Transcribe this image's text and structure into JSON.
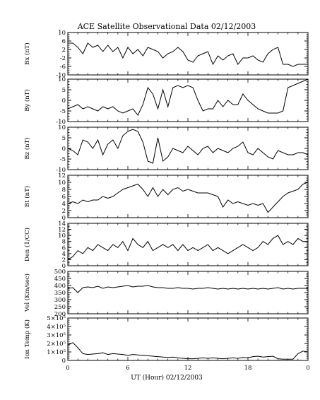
{
  "chart_data": {
    "type": "line",
    "title": "ACE Satellite Observational Data   02/12/2003",
    "xlabel": "UT (Hour)   02/12/2003",
    "x_ticks": [
      "0",
      "6",
      "12",
      "18",
      "0"
    ],
    "xlim": [
      0,
      24
    ],
    "grid": false,
    "panels": [
      {
        "ylabel": "Bx (nT)",
        "ylim": [
          -10,
          10
        ],
        "y_ticks": [
          "10",
          "6",
          "2",
          "-2",
          "-6",
          "-10"
        ],
        "x": [
          0,
          0.5,
          1,
          1.5,
          2,
          2.5,
          3,
          3.5,
          4,
          4.5,
          5,
          5.5,
          6,
          6.5,
          7,
          7.5,
          8,
          8.5,
          9,
          9.5,
          10,
          10.5,
          11,
          11.5,
          12,
          12.5,
          13,
          13.5,
          14,
          14.5,
          15,
          15.5,
          16,
          16.5,
          17,
          17.5,
          18,
          18.5,
          19,
          19.5,
          20,
          20.5,
          21,
          21.5,
          22,
          22.5,
          23,
          23.5,
          24
        ],
        "values": [
          5,
          5,
          3,
          0,
          5,
          3,
          4,
          1,
          4,
          1,
          3,
          -2,
          3,
          0,
          2,
          -1,
          3,
          2,
          1,
          -2,
          0,
          1,
          3,
          1,
          -3,
          -4,
          -1,
          0,
          1,
          -5,
          -1,
          -3,
          -1,
          0,
          -5,
          -2,
          -2,
          -1,
          -3,
          -4,
          0,
          2,
          3,
          -5,
          -5,
          -6,
          -5,
          -5,
          -5
        ]
      },
      {
        "ylabel": "By (nT)",
        "ylim": [
          -10,
          10
        ],
        "y_ticks": [
          "10",
          "5",
          "0",
          "-5",
          "-10"
        ],
        "x": [
          0,
          0.5,
          1,
          1.5,
          2,
          2.5,
          3,
          3.5,
          4,
          4.5,
          5,
          5.5,
          6,
          6.5,
          7,
          7.5,
          8,
          8.5,
          9,
          9.5,
          10,
          10.5,
          11,
          11.5,
          12,
          12.5,
          13,
          13.5,
          14,
          14.5,
          15,
          15.5,
          16,
          16.5,
          17,
          17.5,
          18,
          18.5,
          19,
          19.5,
          20,
          20.5,
          21,
          21.5,
          22,
          22.5,
          23,
          23.5,
          24
        ],
        "values": [
          -4,
          -3,
          -2,
          -4,
          -3,
          -4,
          -5,
          -3,
          -4,
          -3,
          -5,
          -6,
          -5,
          -4,
          -7,
          -2,
          6,
          3,
          -4,
          5,
          -3,
          6,
          7,
          6,
          7,
          6,
          0,
          -5,
          -4,
          -4,
          0,
          -3,
          0,
          -2,
          -2,
          3,
          0,
          -2,
          -4,
          -5,
          -6,
          -6,
          -6,
          -5,
          6,
          7,
          8,
          9,
          10
        ]
      },
      {
        "ylabel": "Bz (nT)",
        "ylim": [
          -10,
          10
        ],
        "y_ticks": [
          "10",
          "5",
          "0",
          "-5",
          "-10"
        ],
        "x": [
          0,
          0.5,
          1,
          1.5,
          2,
          2.5,
          3,
          3.5,
          4,
          4.5,
          5,
          5.5,
          6,
          6.5,
          7,
          7.5,
          8,
          8.5,
          9,
          9.5,
          10,
          10.5,
          11,
          11.5,
          12,
          12.5,
          13,
          13.5,
          14,
          14.5,
          15,
          15.5,
          16,
          16.5,
          17,
          17.5,
          18,
          18.5,
          19,
          19.5,
          20,
          20.5,
          21,
          21.5,
          22,
          22.5,
          23,
          23.5,
          24
        ],
        "values": [
          0,
          -1,
          -3,
          4,
          3,
          0,
          4,
          -3,
          2,
          4,
          0,
          6,
          8,
          9,
          8,
          3,
          -6,
          -7,
          5,
          -6,
          -4,
          0,
          -1,
          -2,
          1,
          -1,
          -3,
          0,
          1,
          -2,
          0,
          -1,
          -2,
          0,
          1,
          3,
          -2,
          -3,
          0,
          -2,
          -4,
          -5,
          -1,
          -2,
          -3,
          -3,
          -2,
          -2,
          -3
        ]
      },
      {
        "ylabel": "Bt (nT)",
        "ylim": [
          0,
          12
        ],
        "y_ticks": [
          "12",
          "10",
          "8",
          "6",
          "4",
          "2",
          "0"
        ],
        "x": [
          0,
          0.5,
          1,
          1.5,
          2,
          2.5,
          3,
          3.5,
          4,
          4.5,
          5,
          5.5,
          6,
          6.5,
          7,
          7.5,
          8,
          8.5,
          9,
          9.5,
          10,
          10.5,
          11,
          11.5,
          12,
          12.5,
          13,
          13.5,
          14,
          14.5,
          15,
          15.5,
          16,
          16.5,
          17,
          17.5,
          18,
          18.5,
          19,
          19.5,
          20,
          20.5,
          21,
          21.5,
          22,
          22.5,
          23,
          23.5,
          24
        ],
        "values": [
          4,
          4.5,
          4,
          5,
          4.5,
          5,
          5,
          6,
          5.5,
          6,
          7,
          8,
          8.5,
          9,
          9.5,
          8,
          6,
          8.5,
          6,
          8,
          6.5,
          8,
          8.5,
          7.5,
          8,
          7.5,
          7,
          7,
          7,
          6.5,
          6,
          3,
          5,
          4,
          4.5,
          4,
          3.5,
          4,
          3.5,
          4,
          1.5,
          3,
          4.5,
          6,
          7,
          7.5,
          8,
          9.5,
          10
        ]
      },
      {
        "ylabel": "Den (1/CC)",
        "ylim": [
          0,
          14
        ],
        "y_ticks": [
          "14",
          "12",
          "10",
          "8",
          "6",
          "4",
          "2",
          "0"
        ],
        "x": [
          0,
          0.5,
          1,
          1.5,
          2,
          2.5,
          3,
          3.5,
          4,
          4.5,
          5,
          5.5,
          6,
          6.5,
          7,
          7.5,
          8,
          8.5,
          9,
          9.5,
          10,
          10.5,
          11,
          11.5,
          12,
          12.5,
          13,
          13.5,
          14,
          14.5,
          15,
          15.5,
          16,
          16.5,
          17,
          17.5,
          18,
          18.5,
          19,
          19.5,
          20,
          20.5,
          21,
          21.5,
          22,
          22.5,
          23,
          23.5,
          24
        ],
        "values": [
          2,
          3,
          5,
          4,
          6,
          5,
          7,
          6,
          5,
          7,
          6,
          8,
          5,
          9,
          7,
          6,
          8,
          5,
          6,
          7,
          6,
          7,
          5,
          7,
          5,
          6,
          5,
          6,
          7,
          5,
          6,
          5,
          4,
          5,
          6,
          7,
          6,
          5,
          6,
          8,
          7,
          9,
          10,
          7,
          8,
          7,
          9,
          8,
          8
        ]
      },
      {
        "ylabel": "Vel (Km/sec)",
        "ylim": [
          200,
          500
        ],
        "y_ticks": [
          "500",
          "450",
          "400",
          "350",
          "300",
          "250",
          "200"
        ],
        "x": [
          0,
          0.5,
          1,
          1.5,
          2,
          2.5,
          3,
          3.5,
          4,
          4.5,
          5,
          5.5,
          6,
          6.5,
          7,
          7.5,
          8,
          8.5,
          9,
          9.5,
          10,
          10.5,
          11,
          11.5,
          12,
          12.5,
          13,
          13.5,
          14,
          14.5,
          15,
          15.5,
          16,
          16.5,
          17,
          17.5,
          18,
          18.5,
          19,
          19.5,
          20,
          20.5,
          21,
          21.5,
          22,
          22.5,
          23,
          23.5,
          24
        ],
        "values": [
          380,
          385,
          350,
          385,
          390,
          385,
          395,
          380,
          390,
          385,
          390,
          395,
          400,
          390,
          395,
          395,
          400,
          390,
          385,
          385,
          380,
          380,
          385,
          380,
          380,
          375,
          380,
          380,
          385,
          380,
          375,
          380,
          375,
          380,
          375,
          380,
          375,
          380,
          375,
          380,
          375,
          380,
          385,
          375,
          380,
          375,
          380,
          380,
          380
        ]
      },
      {
        "ylabel": "Ion Temp (K)",
        "ylim": [
          0,
          500000
        ],
        "y_ticks": [
          "5×10⁵",
          "4×10⁵",
          "3×10⁵",
          "2×10⁵",
          "1×10⁵",
          "0"
        ],
        "x": [
          0,
          0.5,
          1,
          1.5,
          2,
          2.5,
          3,
          3.5,
          4,
          4.5,
          5,
          5.5,
          6,
          6.5,
          7,
          7.5,
          8,
          8.5,
          9,
          9.5,
          10,
          10.5,
          11,
          11.5,
          12,
          12.5,
          13,
          13.5,
          14,
          14.5,
          15,
          15.5,
          16,
          16.5,
          17,
          17.5,
          18,
          18.5,
          19,
          19.5,
          20,
          20.5,
          21,
          21.5,
          22,
          22.5,
          23,
          23.5,
          24
        ],
        "values": [
          180000,
          210000,
          150000,
          80000,
          70000,
          75000,
          80000,
          90000,
          70000,
          80000,
          75000,
          70000,
          60000,
          70000,
          65000,
          60000,
          55000,
          50000,
          45000,
          40000,
          35000,
          40000,
          30000,
          25000,
          20000,
          20000,
          25000,
          30000,
          25000,
          30000,
          25000,
          20000,
          25000,
          30000,
          25000,
          35000,
          30000,
          45000,
          50000,
          40000,
          45000,
          50000,
          20000,
          15000,
          15000,
          15000,
          80000,
          110000,
          100000
        ]
      }
    ]
  }
}
